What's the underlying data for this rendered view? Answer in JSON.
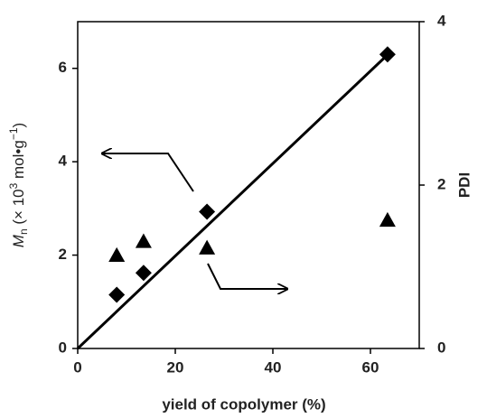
{
  "chart_data": {
    "type": "scatter",
    "x_label": "yield of copolymer (%)",
    "y_label": [
      "M",
      "n",
      " (× 10",
      "3",
      " mol•g",
      "−1",
      ")"
    ],
    "y2_label": "PDI",
    "xlim": [
      0,
      70
    ],
    "xticks": [
      0,
      20,
      40,
      60
    ],
    "ylim": [
      0,
      7
    ],
    "yticks": [
      0,
      2,
      4,
      6
    ],
    "y2lim": [
      0,
      4
    ],
    "y2ticks": [
      0,
      2,
      4
    ],
    "series": [
      {
        "marker": "diamond",
        "color": "#000000",
        "x": [
          8,
          13.5,
          26.5,
          63.5
        ],
        "values": [
          1.15,
          1.62,
          2.93,
          6.3
        ]
      },
      {
        "marker": "triangle",
        "color": "#000000",
        "axis": "y2",
        "x": [
          8,
          13.5,
          26.5,
          63.5
        ],
        "values": [
          1.14,
          1.31,
          1.23,
          1.57
        ]
      },
      {
        "marker": "line",
        "color": "#000000",
        "x": [
          0,
          64
        ],
        "values": [
          0,
          6.34
        ]
      }
    ]
  }
}
